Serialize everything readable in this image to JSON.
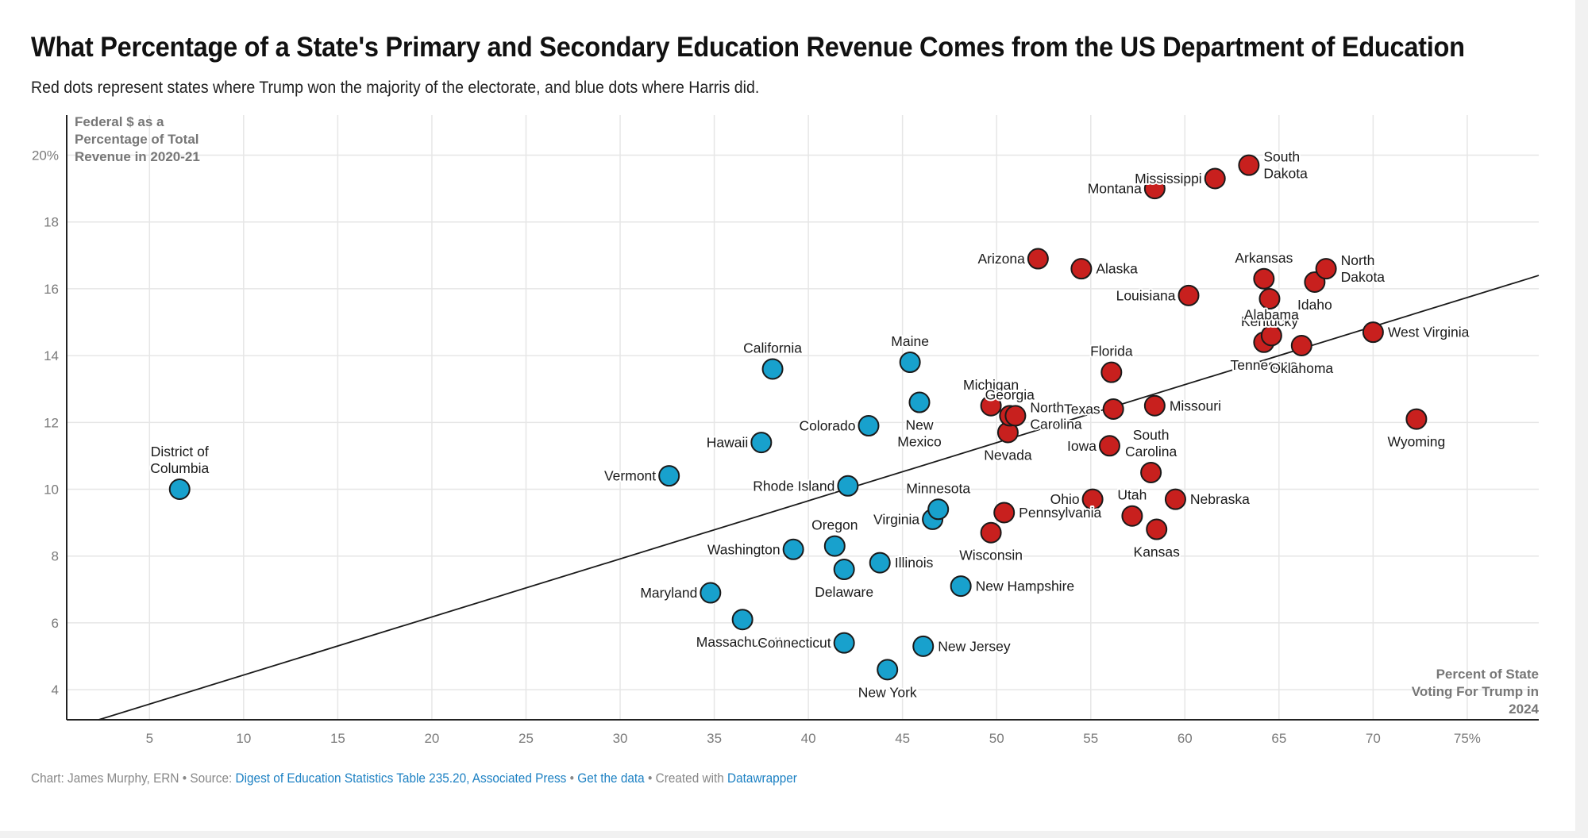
{
  "header": {
    "title": "What Percentage of a State's Primary and Secondary Education Revenue Comes from the US Department of Education",
    "subtitle": "Red dots represent states where Trump won the majority of the electorate, and blue dots where Harris did."
  },
  "footer": {
    "chart_credit": "Chart: James Murphy, ERN",
    "separator": " • ",
    "source_label": "Source: ",
    "source_link": "Digest of Education Statistics Table 235.20, Associated Press",
    "get_data_link": "Get the data",
    "created_with_label": "Created with ",
    "datawrapper_link": "Datawrapper"
  },
  "colors": {
    "trump": "#c8201e",
    "harris": "#18a1cd",
    "dot_stroke": "#1a1a1a",
    "grid": "#e6e6e6",
    "axis": "#222222",
    "link": "#1d81c3",
    "trend_line": "#1a1a1a"
  },
  "chart_data": {
    "type": "scatter",
    "title": "What Percentage of a State's Primary and Secondary Education Revenue Comes from the US Department of Education",
    "xlabel": "Percent of State Voting For Trump in 2024",
    "ylabel": "Federal $ as a Percentage of Total Revenue in 2020-21",
    "xlim": [
      0.6,
      78.8
    ],
    "ylim": [
      3.1,
      21.2
    ],
    "x_ticks": [
      5,
      10,
      15,
      20,
      25,
      30,
      35,
      40,
      45,
      50,
      55,
      60,
      65,
      70,
      75
    ],
    "x_tick_labels": [
      "5",
      "10",
      "15",
      "20",
      "25",
      "30",
      "35",
      "40",
      "45",
      "50",
      "55",
      "60",
      "65",
      "70",
      "75%"
    ],
    "y_ticks": [
      4,
      6,
      8,
      10,
      12,
      14,
      16,
      18,
      20
    ],
    "y_tick_labels": [
      "4",
      "6",
      "8",
      "10",
      "12",
      "14",
      "16",
      "18",
      "20%"
    ],
    "grid": true,
    "legend": "none (explained in subtitle)",
    "trend_line": {
      "x": [
        2.3,
        78.8
      ],
      "y": [
        3.1,
        16.4
      ]
    },
    "series": [
      {
        "name": "Harris",
        "color": "#18a1cd",
        "points": [
          {
            "label": "District of Columbia",
            "x": 6.6,
            "y": 10.0,
            "pos": "top"
          },
          {
            "label": "Vermont",
            "x": 32.6,
            "y": 10.4,
            "pos": "left"
          },
          {
            "label": "Hawaii",
            "x": 37.5,
            "y": 11.4,
            "pos": "left"
          },
          {
            "label": "California",
            "x": 38.1,
            "y": 13.6,
            "pos": "top"
          },
          {
            "label": "Maryland",
            "x": 34.8,
            "y": 6.9,
            "pos": "left"
          },
          {
            "label": "Massachusetts",
            "x": 36.5,
            "y": 6.1,
            "pos": "bottom"
          },
          {
            "label": "Washington",
            "x": 39.2,
            "y": 8.2,
            "pos": "left"
          },
          {
            "label": "Oregon",
            "x": 41.4,
            "y": 8.3,
            "pos": "top"
          },
          {
            "label": "Delaware",
            "x": 41.9,
            "y": 7.6,
            "pos": "bottom"
          },
          {
            "label": "Connecticut",
            "x": 41.9,
            "y": 5.4,
            "pos": "left"
          },
          {
            "label": "Rhode Island",
            "x": 42.1,
            "y": 10.1,
            "pos": "left"
          },
          {
            "label": "Colorado",
            "x": 43.2,
            "y": 11.9,
            "pos": "left"
          },
          {
            "label": "Illinois",
            "x": 43.8,
            "y": 7.8,
            "pos": "right"
          },
          {
            "label": "New York",
            "x": 44.2,
            "y": 4.6,
            "pos": "bottom"
          },
          {
            "label": "Maine",
            "x": 45.4,
            "y": 13.8,
            "pos": "top"
          },
          {
            "label": "New Mexico",
            "x": 45.9,
            "y": 12.6,
            "pos": "bottom"
          },
          {
            "label": "New Jersey",
            "x": 46.1,
            "y": 5.3,
            "pos": "right"
          },
          {
            "label": "Virginia",
            "x": 46.6,
            "y": 9.1,
            "pos": "left"
          },
          {
            "label": "Minnesota",
            "x": 46.9,
            "y": 9.4,
            "pos": "top"
          },
          {
            "label": "New Hampshire",
            "x": 48.1,
            "y": 7.1,
            "pos": "right"
          }
        ]
      },
      {
        "name": "Trump",
        "color": "#c8201e",
        "points": [
          {
            "label": "Michigan",
            "x": 49.7,
            "y": 12.5,
            "pos": "top"
          },
          {
            "label": "Wisconsin",
            "x": 49.7,
            "y": 8.7,
            "pos": "bottom"
          },
          {
            "label": "Pennsylvania",
            "x": 50.4,
            "y": 9.3,
            "pos": "right"
          },
          {
            "label": "Nevada",
            "x": 50.6,
            "y": 11.7,
            "pos": "bottom"
          },
          {
            "label": "Georgia",
            "x": 50.7,
            "y": 12.2,
            "pos": "top"
          },
          {
            "label": "North Carolina",
            "x": 51.0,
            "y": 12.2,
            "pos": "right"
          },
          {
            "label": "Arizona",
            "x": 52.2,
            "y": 16.9,
            "pos": "left"
          },
          {
            "label": "Alaska",
            "x": 54.5,
            "y": 16.6,
            "pos": "right"
          },
          {
            "label": "Ohio",
            "x": 55.1,
            "y": 9.7,
            "pos": "left"
          },
          {
            "label": "Iowa",
            "x": 56.0,
            "y": 11.3,
            "pos": "left"
          },
          {
            "label": "Florida",
            "x": 56.1,
            "y": 13.5,
            "pos": "top"
          },
          {
            "label": "Texas",
            "x": 56.2,
            "y": 12.4,
            "pos": "left"
          },
          {
            "label": "Utah",
            "x": 57.2,
            "y": 9.2,
            "pos": "top"
          },
          {
            "label": "South Carolina",
            "x": 58.2,
            "y": 10.5,
            "pos": "top"
          },
          {
            "label": "Montana",
            "x": 58.4,
            "y": 19.0,
            "pos": "left"
          },
          {
            "label": "Kansas",
            "x": 58.5,
            "y": 8.8,
            "pos": "bottom"
          },
          {
            "label": "Missouri",
            "x": 58.4,
            "y": 12.5,
            "pos": "right"
          },
          {
            "label": "Nebraska",
            "x": 59.5,
            "y": 9.7,
            "pos": "right"
          },
          {
            "label": "Louisiana",
            "x": 60.2,
            "y": 15.8,
            "pos": "left"
          },
          {
            "label": "Mississippi",
            "x": 61.6,
            "y": 19.3,
            "pos": "left"
          },
          {
            "label": "South Dakota",
            "x": 63.4,
            "y": 19.7,
            "pos": "right"
          },
          {
            "label": "Tennessee",
            "x": 64.2,
            "y": 14.4,
            "pos": "bottom"
          },
          {
            "label": "Arkansas",
            "x": 64.2,
            "y": 16.3,
            "pos": "top"
          },
          {
            "label": "Kentucky",
            "x": 64.5,
            "y": 15.7,
            "pos": "bottom"
          },
          {
            "label": "Alabama",
            "x": 64.6,
            "y": 14.6,
            "pos": "top"
          },
          {
            "label": "Oklahoma",
            "x": 66.2,
            "y": 14.3,
            "pos": "bottom"
          },
          {
            "label": "Idaho",
            "x": 66.9,
            "y": 16.2,
            "pos": "bottom"
          },
          {
            "label": "North Dakota",
            "x": 67.5,
            "y": 16.6,
            "pos": "right"
          },
          {
            "label": "West Virginia",
            "x": 70.0,
            "y": 14.7,
            "pos": "right"
          },
          {
            "label": "Wyoming",
            "x": 72.3,
            "y": 12.1,
            "pos": "bottom"
          }
        ]
      }
    ]
  }
}
